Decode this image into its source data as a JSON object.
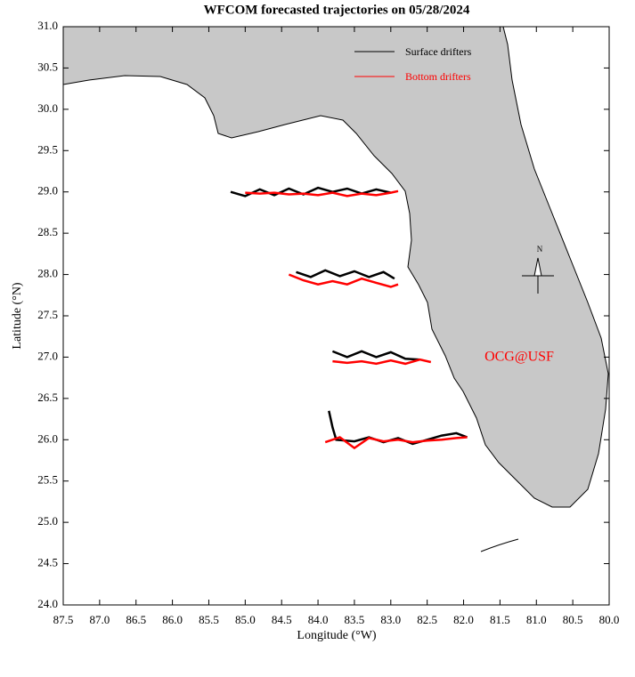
{
  "chart_data": {
    "type": "line",
    "title": "WFCOM forecasted trajectories on 05/28/2024",
    "x_label": "Longitude (°W)",
    "y_label": "Latitude (°N)",
    "annotation": "OCG@USF",
    "compass_label": "N",
    "xlim": [
      87.5,
      80.0
    ],
    "xticks": [
      87.5,
      {
        "value": 87,
        "label": "87.0"
      },
      86.5,
      {
        "value": 86,
        "label": "86.0"
      },
      85.5,
      {
        "value": 85,
        "label": "85.0"
      },
      84.5,
      {
        "value": 84,
        "label": "84.0"
      },
      83.5,
      {
        "value": 83,
        "label": "83.0"
      },
      82.5,
      {
        "value": 82,
        "label": "82.0"
      },
      81.5,
      {
        "value": 81,
        "label": "81.0"
      },
      80.5,
      {
        "value": 80,
        "label": "80.0"
      }
    ],
    "ylim": [
      24.0,
      31.0
    ],
    "yticks": [
      {
        "value": 24,
        "label": "24.0"
      },
      24.5,
      {
        "value": 25,
        "label": "25.0"
      },
      25.5,
      {
        "value": 26,
        "label": "26.0"
      },
      26.5,
      {
        "value": 27,
        "label": "27.0"
      },
      27.5,
      {
        "value": 28,
        "label": "28.0"
      },
      28.5,
      {
        "value": 29,
        "label": "29.0"
      },
      29.5,
      {
        "value": 30,
        "label": "30.0"
      },
      30.5,
      {
        "value": 31,
        "label": "31.0"
      }
    ],
    "legend": "upper right",
    "series": [
      {
        "name": "Surface drifters",
        "color": "#000000",
        "x": [
          85.2,
          85.0,
          84.8,
          84.6,
          84.4,
          84.2,
          84.0,
          83.8,
          83.6,
          83.4,
          83.2,
          83.0,
          null,
          84.3,
          84.1,
          83.9,
          83.7,
          83.5,
          83.3,
          83.1,
          82.95,
          null,
          83.8,
          83.6,
          83.4,
          83.2,
          83.0,
          82.8,
          82.6,
          null,
          83.85,
          83.8,
          83.75,
          83.5,
          83.3,
          83.1,
          82.9,
          82.7,
          82.5,
          82.3,
          82.1,
          81.95
        ],
        "y": [
          29.0,
          28.95,
          29.03,
          28.96,
          29.04,
          28.97,
          29.05,
          29.0,
          29.04,
          28.98,
          29.03,
          28.99,
          null,
          28.03,
          27.97,
          28.05,
          27.98,
          28.04,
          27.97,
          28.03,
          27.95,
          null,
          27.07,
          27.0,
          27.07,
          27.0,
          27.06,
          26.98,
          26.97,
          null,
          26.35,
          26.15,
          26.0,
          25.98,
          26.03,
          25.97,
          26.02,
          25.95,
          26.0,
          26.05,
          26.08,
          26.03
        ]
      },
      {
        "name": "Bottom drifters",
        "color": "#ff0000",
        "x": [
          85.0,
          84.8,
          84.6,
          84.4,
          84.2,
          84.0,
          83.8,
          83.6,
          83.4,
          83.2,
          83.0,
          82.9,
          null,
          84.4,
          84.2,
          84.0,
          83.8,
          83.6,
          83.4,
          83.2,
          83.0,
          82.9,
          null,
          83.8,
          83.6,
          83.4,
          83.2,
          83.0,
          82.8,
          82.6,
          82.45,
          null,
          83.9,
          83.7,
          83.5,
          83.3,
          83.1,
          82.9,
          82.7,
          82.5,
          82.3,
          82.1,
          81.95
        ],
        "y": [
          28.99,
          28.98,
          28.99,
          28.97,
          28.98,
          28.96,
          28.99,
          28.95,
          28.98,
          28.96,
          28.99,
          29.01,
          null,
          28.0,
          27.93,
          27.88,
          27.92,
          27.88,
          27.95,
          27.9,
          27.85,
          27.88,
          null,
          26.95,
          26.93,
          26.95,
          26.92,
          26.96,
          26.92,
          26.97,
          26.94,
          null,
          25.97,
          26.03,
          25.9,
          26.02,
          25.98,
          26.0,
          25.97,
          25.99,
          26.0,
          26.02,
          26.03
        ]
      }
    ]
  }
}
